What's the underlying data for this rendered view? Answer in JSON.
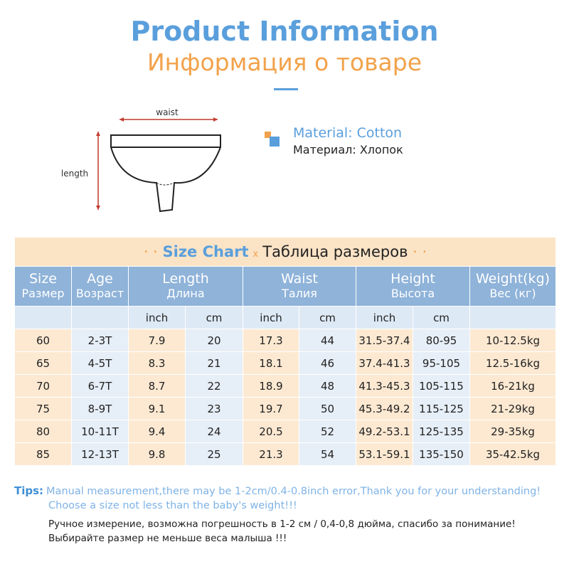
{
  "header": {
    "title": "Product Information",
    "subtitle": "Информация о товаре"
  },
  "diagram": {
    "waist": "waist",
    "length": "length"
  },
  "material": {
    "en": "Material: Cotton",
    "ru": "Материал: Хлопок"
  },
  "size_chart": {
    "title": "Size Chart",
    "separator": "x",
    "title_ru": "Таблица размеров",
    "columns": [
      {
        "en": "Size",
        "ru": "Размер"
      },
      {
        "en": "Age",
        "ru": "Возраст"
      },
      {
        "en": "Length",
        "ru": "Длина"
      },
      {
        "en": "Waist",
        "ru": "Талия"
      },
      {
        "en": "Height",
        "ru": "Высота"
      },
      {
        "en": "Weight(kg)",
        "ru": "Вес (кг)"
      }
    ],
    "units": [
      "inch",
      "cm",
      "inch",
      "cm",
      "inch",
      "cm"
    ],
    "rows": [
      [
        "60",
        "2-3T",
        "7.9",
        "20",
        "17.3",
        "44",
        "31.5-37.4",
        "80-95",
        "10-12.5kg"
      ],
      [
        "65",
        "4-5T",
        "8.3",
        "21",
        "18.1",
        "46",
        "37.4-41.3",
        "95-105",
        "12.5-16kg"
      ],
      [
        "70",
        "6-7T",
        "8.7",
        "22",
        "18.9",
        "48",
        "41.3-45.3",
        "105-115",
        "16-21kg"
      ],
      [
        "75",
        "8-9T",
        "9.1",
        "23",
        "19.7",
        "50",
        "45.3-49.2",
        "115-125",
        "21-29kg"
      ],
      [
        "80",
        "10-11T",
        "9.4",
        "24",
        "20.5",
        "52",
        "49.2-53.1",
        "125-135",
        "29-35kg"
      ],
      [
        "85",
        "12-13T",
        "9.8",
        "25",
        "21.3",
        "54",
        "53.1-59.1",
        "135-150",
        "35-42.5kg"
      ]
    ]
  },
  "tips": {
    "label": "Tips:",
    "lines": [
      "Manual measurement,there may be 1-2cm/0.4-0.8inch error,Thank you for your understanding!",
      "Choose a size not less than the baby's weight!!!"
    ],
    "lines_ru": [
      "Ручное измерение, возможна погрешность в 1-2 см / 0,4-0,8 дюйма, спасибо за понимание!",
      "Выбирайте размер не меньше веса малыша !!!"
    ]
  }
}
